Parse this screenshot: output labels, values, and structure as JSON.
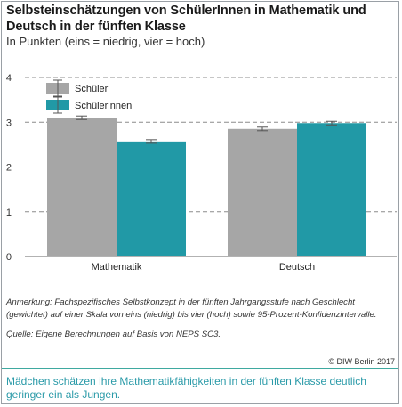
{
  "header": {
    "title": "Selbsteinschätzungen von SchülerInnen in Mathematik und Deutsch in der fünften Klasse",
    "subtitle": "In Punkten (eins = niedrig, vier = hoch)"
  },
  "footer": {
    "note": "Anmerkung: Fachspezifisches Selbstkonzept in der fünften Jahrgangsstufe nach Geschlecht (gewichtet) auf einer Skala von eins (niedrig) bis vier (hoch) sowie 95-Prozent-Konfidenzintervalle.",
    "source": "Quelle: Eigene Berechnungen auf Basis von NEPS SC3.",
    "copyright": "© DIW Berlin 2017",
    "caption": "Mädchen schätzen ihre Mathematikfähigkeiten in der fünften Klasse deutlich geringer ein als Jungen."
  },
  "chart_data": {
    "type": "bar",
    "categories": [
      "Mathematik",
      "Deutsch"
    ],
    "series": [
      {
        "name": "Schüler",
        "values": [
          3.1,
          2.85
        ],
        "ci_low": [
          3.06,
          2.81
        ],
        "ci_high": [
          3.14,
          2.89
        ],
        "color": "#a6a6a6"
      },
      {
        "name": "Schülerinnen",
        "values": [
          2.57,
          2.98
        ],
        "ci_low": [
          2.53,
          2.94
        ],
        "ci_high": [
          2.61,
          3.02
        ],
        "color": "#2199a6"
      }
    ],
    "ylim": [
      0,
      4
    ],
    "yticks": [
      "0",
      "1",
      "2",
      "3",
      "4"
    ],
    "ytick_values": [
      0,
      1,
      2,
      3,
      4
    ],
    "grid": true,
    "legend_position": "top-left"
  }
}
